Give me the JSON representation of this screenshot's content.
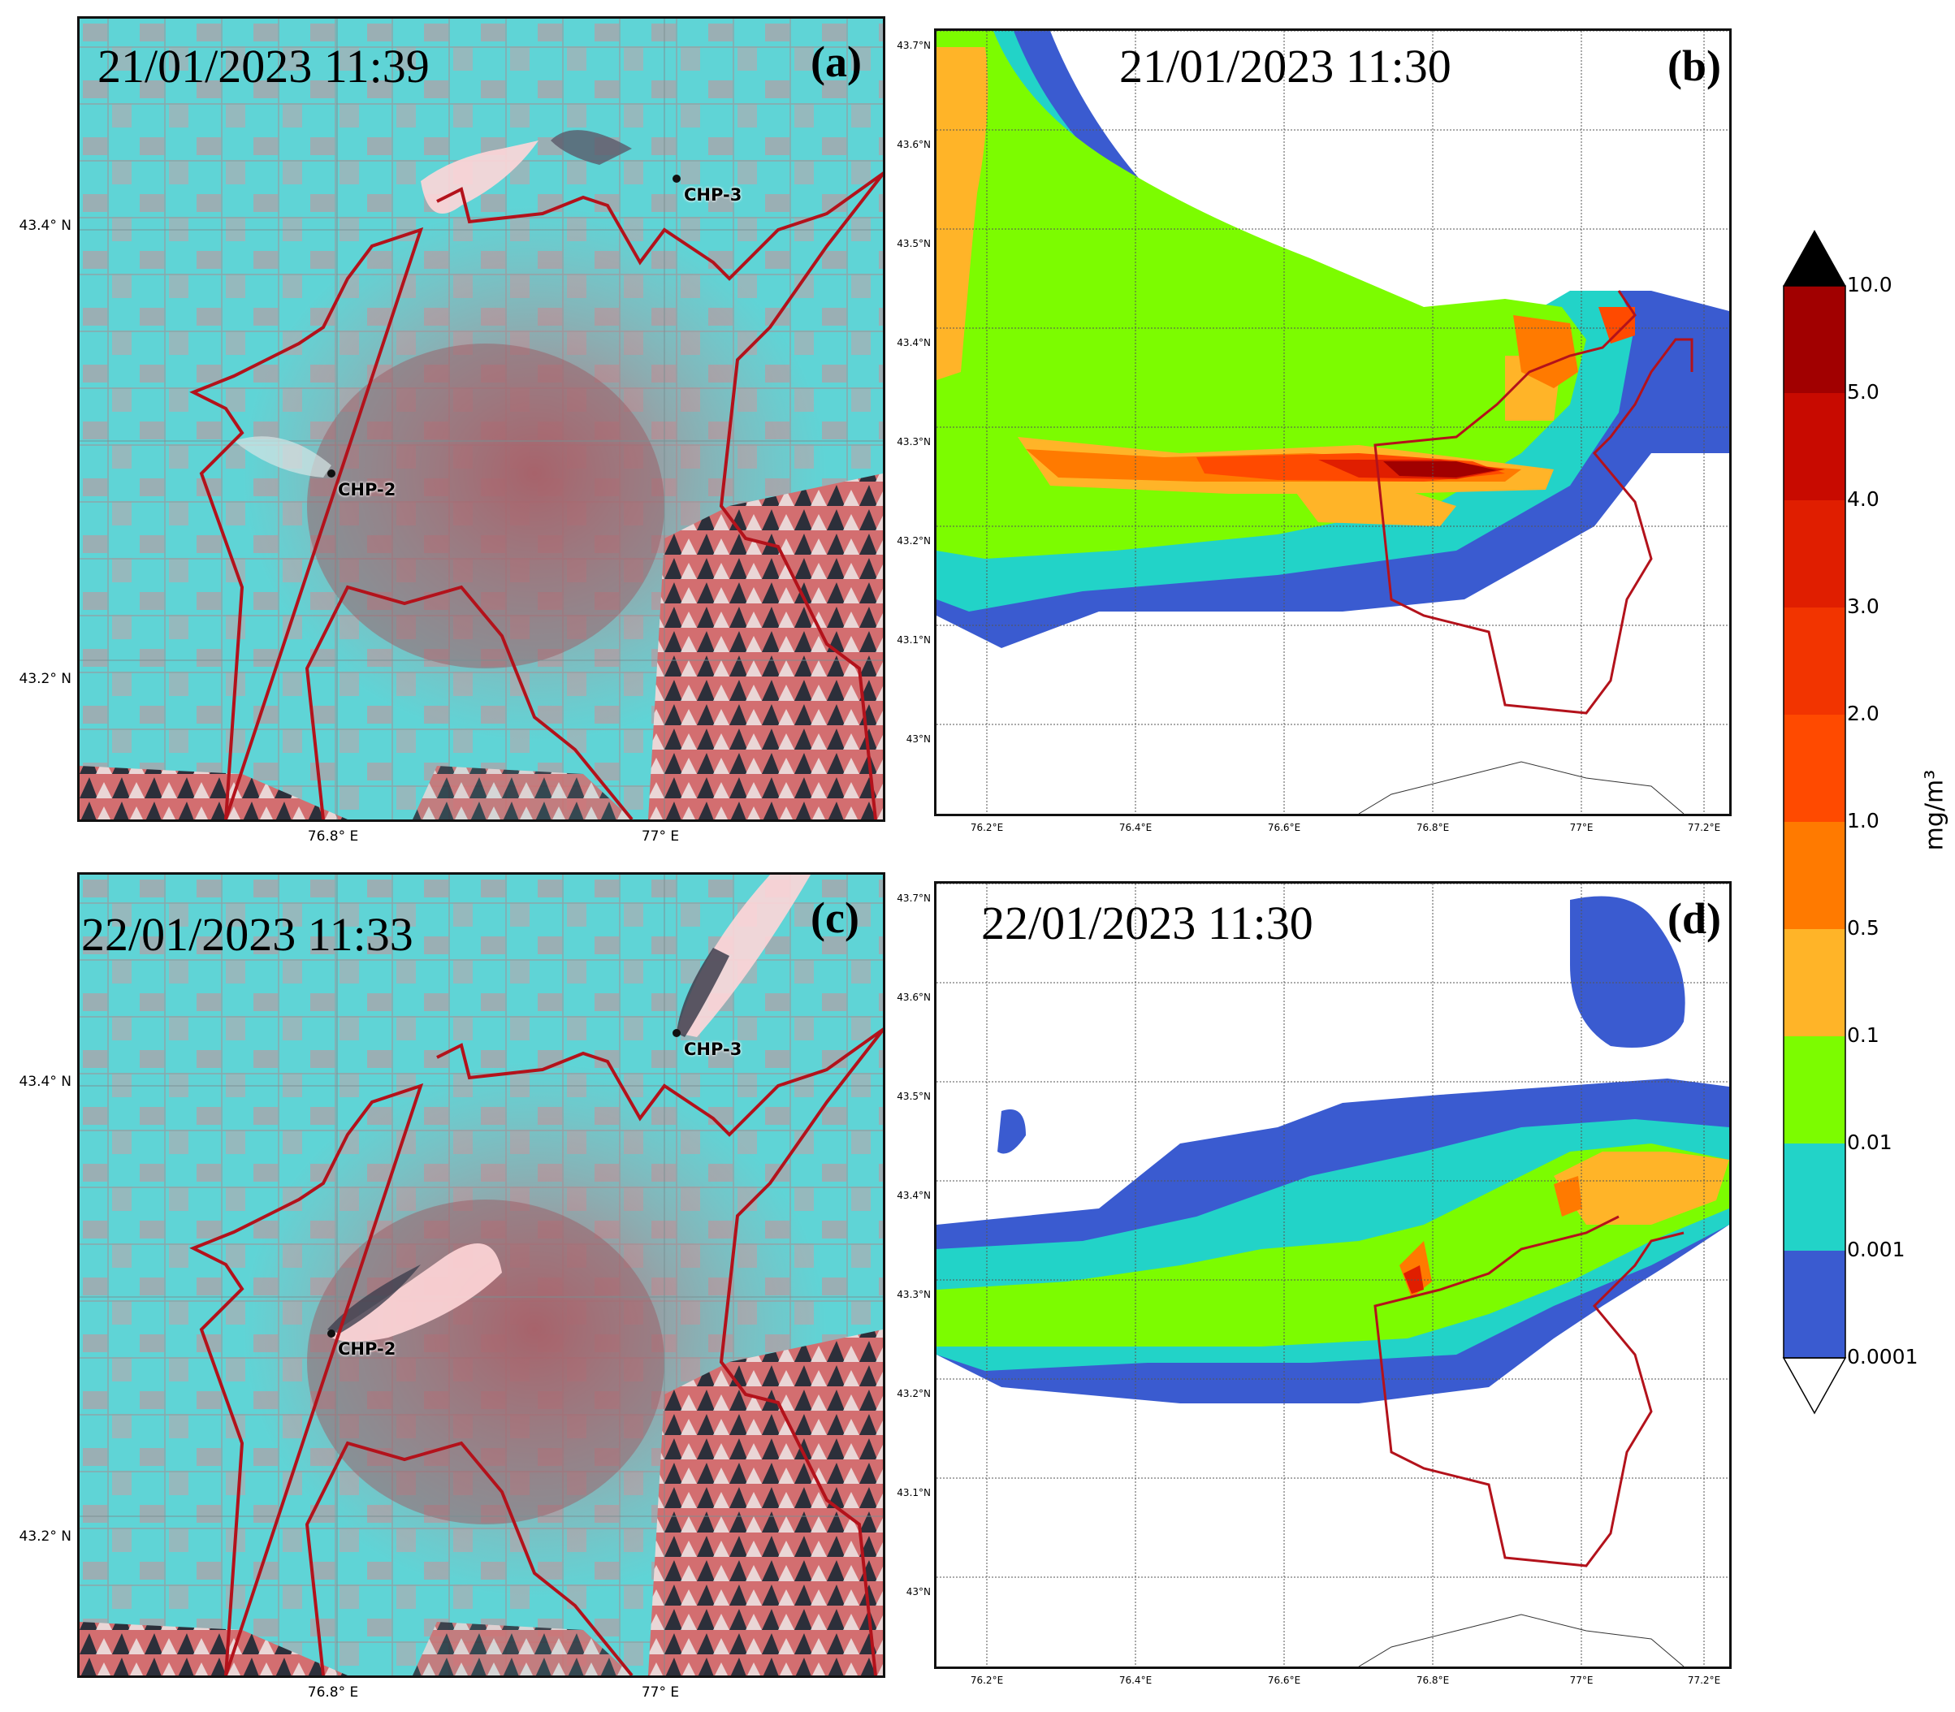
{
  "panels": {
    "a": {
      "label": "(a)",
      "timestamp": "21/01/2023 11:39",
      "chp_labels": [
        "CHP-3",
        "CHP-2"
      ],
      "y_ticks": [
        "43.4° N",
        "43.2° N"
      ],
      "x_ticks": [
        "76.8° E",
        "77° E"
      ]
    },
    "b": {
      "label": "(b)",
      "timestamp": "21/01/2023 11:30",
      "y_ticks": [
        "43.7°N",
        "43.6°N",
        "43.5°N",
        "43.4°N",
        "43.3°N",
        "43.2°N",
        "43.1°N",
        "43°N"
      ],
      "x_ticks": [
        "76.2°E",
        "76.4°E",
        "76.6°E",
        "76.8°E",
        "77°E",
        "77.2°E"
      ]
    },
    "c": {
      "label": "(c)",
      "timestamp": "22/01/2023 11:33",
      "chp_labels": [
        "CHP-3",
        "CHP-2"
      ],
      "y_ticks": [
        "43.4° N",
        "43.2° N"
      ],
      "x_ticks": [
        "76.8° E",
        "77° E"
      ]
    },
    "d": {
      "label": "(d)",
      "timestamp": "22/01/2023 11:30",
      "y_ticks": [
        "43.7°N",
        "43.6°N",
        "43.5°N",
        "43.4°N",
        "43.3°N",
        "43.2°N",
        "43.1°N",
        "43°N"
      ],
      "x_ticks": [
        "76.2°E",
        "76.4°E",
        "76.6°E",
        "76.8°E",
        "77°E",
        "77.2°E"
      ]
    }
  },
  "colorbar": {
    "unit": "mg/m³",
    "levels": [
      "10.0",
      "5.0",
      "4.0",
      "3.0",
      "2.0",
      "1.0",
      "0.5",
      "0.1",
      "0.01",
      "0.001",
      "0.0001"
    ],
    "colors": [
      "#a10000",
      "#c80a00",
      "#e01e00",
      "#f23400",
      "#ff4a00",
      "#ff7a00",
      "#ffb428",
      "#7cfc00",
      "#22d3c8",
      "#3a5bd0"
    ],
    "over_color": "#000000",
    "under_color": "#ffffff"
  }
}
